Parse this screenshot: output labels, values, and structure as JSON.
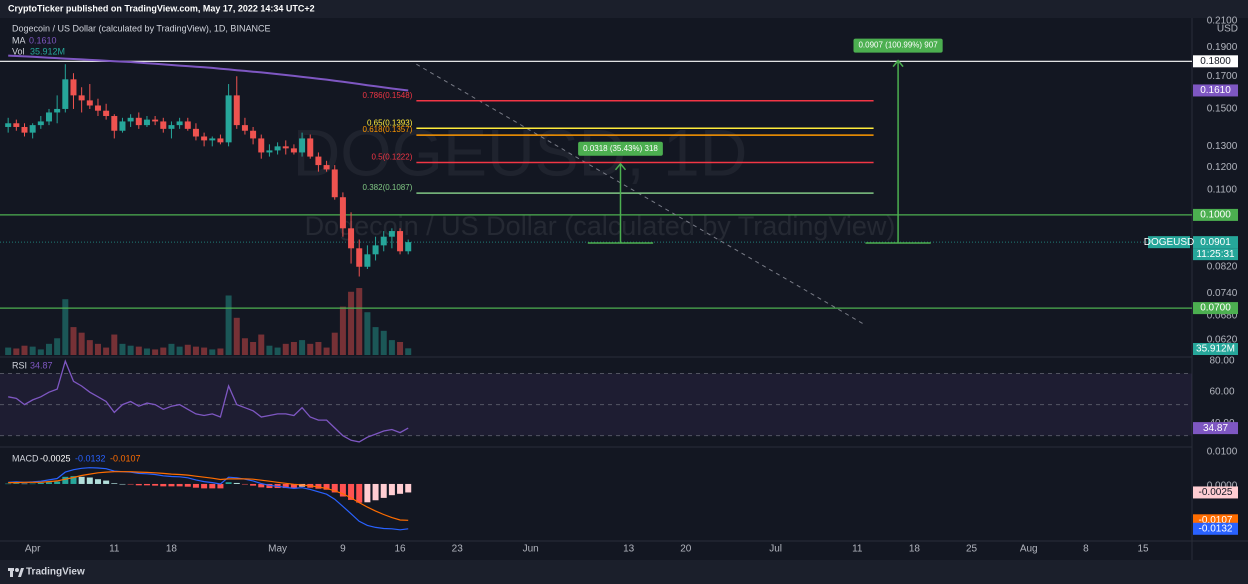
{
  "chart_data": {
    "type": "candlestick",
    "publisher": "CryptoTicker published on TradingView.com, May 17, 2022 14:34 UTC+2",
    "symbol_title": "Dogecoin / US Dollar (calculated by TradingView), 1D, BINANCE",
    "watermark_symbol": "DOGEUSD, 1D",
    "watermark_name": "Dogecoin / US Dollar (calculated by TradingView)",
    "currency": "USD",
    "symbol_tag": "DOGEUSD",
    "countdown": "11:25:31",
    "logo": "TradingView",
    "up_color": "#26a69a",
    "down_color": "#ef5350",
    "log_scale": true,
    "grid": false,
    "xlim": [
      "2022-03-28",
      "2022-08-21"
    ],
    "xticks": [
      {
        "value": "2022-04-01",
        "label": "Apr"
      },
      {
        "value": "2022-04-11",
        "label": "11"
      },
      {
        "value": "2022-04-18",
        "label": "18"
      },
      {
        "value": "2022-05-01",
        "label": "May"
      },
      {
        "value": "2022-05-09",
        "label": "9"
      },
      {
        "value": "2022-05-16",
        "label": "16"
      },
      {
        "value": "2022-05-23",
        "label": "23"
      },
      {
        "value": "2022-06-01",
        "label": "Jun"
      },
      {
        "value": "2022-06-13",
        "label": "13"
      },
      {
        "value": "2022-06-20",
        "label": "20"
      },
      {
        "value": "2022-07-01",
        "label": "Jul"
      },
      {
        "value": "2022-07-11",
        "label": "11"
      },
      {
        "value": "2022-07-18",
        "label": "18"
      },
      {
        "value": "2022-07-25",
        "label": "25"
      },
      {
        "value": "2022-08-01",
        "label": "Aug"
      },
      {
        "value": "2022-08-08",
        "label": "8"
      },
      {
        "value": "2022-08-15",
        "label": "15"
      }
    ],
    "ylim": [
      0.0585,
      0.2149
    ],
    "yticks": [
      {
        "value": 0.21,
        "label": "0.2100"
      },
      {
        "value": 0.19,
        "label": "0.1900"
      },
      {
        "value": 0.17,
        "label": "0.1700"
      },
      {
        "value": 0.15,
        "label": "0.1500"
      },
      {
        "value": 0.13,
        "label": "0.1300"
      },
      {
        "value": 0.12,
        "label": "0.1200"
      },
      {
        "value": 0.11,
        "label": "0.1100"
      },
      {
        "value": 0.082,
        "label": "0.0820"
      },
      {
        "value": 0.074,
        "label": "0.0740"
      },
      {
        "value": 0.068,
        "label": "0.0680"
      },
      {
        "value": 0.062,
        "label": "0.0620"
      }
    ],
    "x": [
      "2022-03-29",
      "2022-03-30",
      "2022-03-31",
      "2022-04-01",
      "2022-04-02",
      "2022-04-03",
      "2022-04-04",
      "2022-04-05",
      "2022-04-06",
      "2022-04-07",
      "2022-04-08",
      "2022-04-09",
      "2022-04-10",
      "2022-04-11",
      "2022-04-12",
      "2022-04-13",
      "2022-04-14",
      "2022-04-15",
      "2022-04-16",
      "2022-04-17",
      "2022-04-18",
      "2022-04-19",
      "2022-04-20",
      "2022-04-21",
      "2022-04-22",
      "2022-04-23",
      "2022-04-24",
      "2022-04-25",
      "2022-04-26",
      "2022-04-27",
      "2022-04-28",
      "2022-04-29",
      "2022-04-30",
      "2022-05-01",
      "2022-05-02",
      "2022-05-03",
      "2022-05-04",
      "2022-05-05",
      "2022-05-06",
      "2022-05-07",
      "2022-05-08",
      "2022-05-09",
      "2022-05-10",
      "2022-05-11",
      "2022-05-12",
      "2022-05-13",
      "2022-05-14",
      "2022-05-15",
      "2022-05-16",
      "2022-05-17"
    ],
    "open": [
      0.14,
      0.142,
      0.14,
      0.137,
      0.141,
      0.143,
      0.148,
      0.15,
      0.168,
      0.158,
      0.155,
      0.152,
      0.149,
      0.146,
      0.138,
      0.143,
      0.145,
      0.141,
      0.144,
      0.143,
      0.139,
      0.141,
      0.143,
      0.139,
      0.135,
      0.133,
      0.134,
      0.132,
      0.158,
      0.141,
      0.138,
      0.134,
      0.127,
      0.128,
      0.13,
      0.129,
      0.127,
      0.134,
      0.125,
      0.121,
      0.119,
      0.107,
      0.095,
      0.088,
      0.082,
      0.086,
      0.089,
      0.092,
      0.094,
      0.087
    ],
    "high": [
      0.145,
      0.144,
      0.142,
      0.142,
      0.146,
      0.15,
      0.158,
      0.178,
      0.172,
      0.163,
      0.165,
      0.156,
      0.153,
      0.147,
      0.145,
      0.147,
      0.148,
      0.146,
      0.146,
      0.145,
      0.143,
      0.145,
      0.145,
      0.142,
      0.137,
      0.135,
      0.136,
      0.165,
      0.17,
      0.145,
      0.14,
      0.136,
      0.131,
      0.132,
      0.133,
      0.131,
      0.137,
      0.136,
      0.127,
      0.123,
      0.121,
      0.109,
      0.101,
      0.091,
      0.089,
      0.092,
      0.094,
      0.095,
      0.095,
      0.091
    ],
    "low": [
      0.137,
      0.138,
      0.135,
      0.134,
      0.139,
      0.141,
      0.142,
      0.148,
      0.15,
      0.148,
      0.15,
      0.146,
      0.144,
      0.134,
      0.137,
      0.14,
      0.139,
      0.14,
      0.141,
      0.137,
      0.134,
      0.139,
      0.138,
      0.133,
      0.13,
      0.13,
      0.131,
      0.13,
      0.139,
      0.136,
      0.131,
      0.124,
      0.125,
      0.126,
      0.126,
      0.126,
      0.125,
      0.124,
      0.118,
      0.118,
      0.106,
      0.092,
      0.083,
      0.079,
      0.0813,
      0.084,
      0.087,
      0.088,
      0.086,
      0.086
    ],
    "close": [
      0.142,
      0.14,
      0.137,
      0.141,
      0.143,
      0.148,
      0.15,
      0.168,
      0.158,
      0.155,
      0.152,
      0.149,
      0.146,
      0.138,
      0.143,
      0.145,
      0.141,
      0.144,
      0.143,
      0.139,
      0.141,
      0.143,
      0.139,
      0.135,
      0.133,
      0.134,
      0.132,
      0.158,
      0.141,
      0.138,
      0.134,
      0.127,
      0.128,
      0.13,
      0.129,
      0.127,
      0.134,
      0.125,
      0.121,
      0.119,
      0.107,
      0.095,
      0.088,
      0.082,
      0.086,
      0.089,
      0.092,
      0.094,
      0.087,
      0.0901
    ],
    "ma": {
      "name": "MA",
      "color": "#7e57c2",
      "last_label": "0.1610",
      "values": [
        0.184,
        0.1837,
        0.1834,
        0.1831,
        0.1828,
        0.1825,
        0.1822,
        0.1819,
        0.1816,
        0.1813,
        0.181,
        0.1807,
        0.1804,
        0.1801,
        0.1798,
        0.1795,
        0.1791,
        0.1787,
        0.1783,
        0.1779,
        0.1775,
        0.1771,
        0.1767,
        0.1763,
        0.1759,
        0.1755,
        0.175,
        0.1745,
        0.174,
        0.1735,
        0.173,
        0.1725,
        0.172,
        0.1714,
        0.1708,
        0.1702,
        0.1696,
        0.169,
        0.1684,
        0.1678,
        0.1671,
        0.1664,
        0.1657,
        0.165,
        0.1643,
        0.1636,
        0.1629,
        0.1622,
        0.1616,
        0.161
      ]
    },
    "volume": {
      "name": "Vol",
      "last_label": "35.912M",
      "ylim": [
        0,
        500
      ],
      "values": [
        40,
        35,
        50,
        45,
        30,
        60,
        90,
        300,
        150,
        120,
        80,
        60,
        40,
        110,
        60,
        50,
        45,
        35,
        30,
        40,
        60,
        45,
        55,
        45,
        40,
        30,
        35,
        320,
        200,
        90,
        70,
        110,
        50,
        40,
        60,
        70,
        80,
        60,
        70,
        40,
        120,
        260,
        340,
        360,
        230,
        150,
        130,
        80,
        70,
        35.912
      ]
    },
    "lines": [
      {
        "value": 0.18,
        "label": "0.1800",
        "color": "#ffffff"
      },
      {
        "value": 0.1,
        "label": "0.1000",
        "color": "#4caf50"
      },
      {
        "value": 0.07,
        "label": "0.0700",
        "color": "#4caf50"
      }
    ],
    "fib_span": [
      "2022-05-18",
      "2022-07-13"
    ],
    "fib": [
      {
        "value": 0.1548,
        "label": "0.786(0.1548)",
        "color": "#f23645"
      },
      {
        "value": 0.1393,
        "label": "0.65(0.1393)",
        "color": "#ffeb3b"
      },
      {
        "value": 0.1357,
        "label": "0.618(0.1357)",
        "color": "#ff9800"
      },
      {
        "value": 0.1222,
        "label": "0.5(0.1222)",
        "color": "#f23645"
      },
      {
        "value": 0.1087,
        "label": "0.382(0.1087)",
        "color": "#81c784"
      }
    ],
    "trendline": {
      "x": [
        "2022-05-18",
        "2022-07-12"
      ],
      "y": [
        0.178,
        0.0656
      ]
    },
    "measures": [
      {
        "label": "0.0318 (35.43%) 318",
        "from": 0.0898,
        "to": 0.1216,
        "start": "2022-06-08",
        "end": "2022-06-16",
        "color": "#4caf50"
      },
      {
        "label": "0.0907 (100.99%) 907",
        "from": 0.0898,
        "to": 0.1805,
        "start": "2022-07-12",
        "end": "2022-07-20",
        "color": "#4caf50"
      }
    ],
    "rsi": {
      "name": "RSI",
      "color": "#7e57c2",
      "ylim": [
        24,
        80
      ],
      "levels": [
        70,
        50,
        30
      ],
      "yticks": [
        {
          "value": 80,
          "label": "80.00"
        },
        {
          "value": 60,
          "label": "60.00"
        },
        {
          "value": 40,
          "label": "40.00"
        }
      ],
      "values": [
        55,
        54,
        50,
        53,
        55,
        58,
        60,
        78,
        65,
        62,
        58,
        55,
        52,
        45,
        50,
        52,
        49,
        51,
        50,
        47,
        49,
        50,
        47,
        44,
        43,
        44,
        42,
        62,
        50,
        48,
        46,
        42,
        43,
        44,
        44,
        43,
        48,
        42,
        40,
        40,
        35,
        30,
        27,
        26,
        29,
        31,
        33,
        34,
        32,
        34.87
      ]
    },
    "macd": {
      "name": "MACD",
      "ylim": [
        -0.0165,
        0.01
      ],
      "yticks": [
        {
          "value": 0.01,
          "label": "0.0100"
        },
        {
          "value": 0,
          "label": "0.0000"
        }
      ],
      "hist_colors": [
        "#26a69a",
        "#b2dfdb",
        "#ff5252",
        "#ffcdd2"
      ],
      "hist": [
        0.0001,
        0.0002,
        0.0001,
        0.0001,
        0.0003,
        0.0005,
        0.0007,
        0.0021,
        0.0023,
        0.0021,
        0.0019,
        0.0014,
        0.001,
        0.0002,
        0,
        -0.0001,
        -0.0004,
        -0.0004,
        -0.0005,
        -0.0007,
        -0.0007,
        -0.0007,
        -0.0008,
        -0.0011,
        -0.0013,
        -0.0013,
        -0.0013,
        0.0005,
        0.0003,
        -0.0001,
        -0.0005,
        -0.001,
        -0.0012,
        -0.0012,
        -0.0012,
        -0.0012,
        -0.0008,
        -0.0011,
        -0.0014,
        -0.0017,
        -0.0025,
        -0.0037,
        -0.0047,
        -0.0055,
        -0.0054,
        -0.0048,
        -0.0041,
        -0.0033,
        -0.0029,
        -0.0025
      ],
      "macd": {
        "color": "#2962ff",
        "values": [
          0.0005,
          0.0006,
          0.0005,
          0.0006,
          0.0008,
          0.0012,
          0.0016,
          0.0035,
          0.0042,
          0.0046,
          0.0048,
          0.0047,
          0.0045,
          0.0038,
          0.0036,
          0.0035,
          0.0031,
          0.003,
          0.0028,
          0.0024,
          0.0022,
          0.0021,
          0.0018,
          0.0012,
          0.0007,
          0.0004,
          0,
          0.002,
          0.0018,
          0.0014,
          0.0009,
          0.0001,
          -0.0004,
          -0.0007,
          -0.001,
          -0.0013,
          -0.0011,
          -0.0016,
          -0.0023,
          -0.003,
          -0.0045,
          -0.0066,
          -0.0088,
          -0.011,
          -0.0122,
          -0.0128,
          -0.0131,
          -0.0132,
          -0.0135,
          -0.0132
        ]
      },
      "signal": {
        "color": "#ff6d00",
        "values": [
          0.0004,
          0.0004,
          0.0005,
          0.0005,
          0.0005,
          0.0007,
          0.0009,
          0.0014,
          0.0019,
          0.0025,
          0.0029,
          0.0033,
          0.0035,
          0.0036,
          0.0036,
          0.0036,
          0.0035,
          0.0034,
          0.0033,
          0.0031,
          0.0029,
          0.0028,
          0.0026,
          0.0023,
          0.002,
          0.0017,
          0.0013,
          0.0015,
          0.0015,
          0.0015,
          0.0014,
          0.0011,
          0.0008,
          0.0005,
          0.0002,
          -0.0001,
          -0.0003,
          -0.0005,
          -0.0009,
          -0.0013,
          -0.002,
          -0.0029,
          -0.0041,
          -0.0055,
          -0.0068,
          -0.008,
          -0.009,
          -0.0099,
          -0.0106,
          -0.0107
        ]
      }
    }
  }
}
